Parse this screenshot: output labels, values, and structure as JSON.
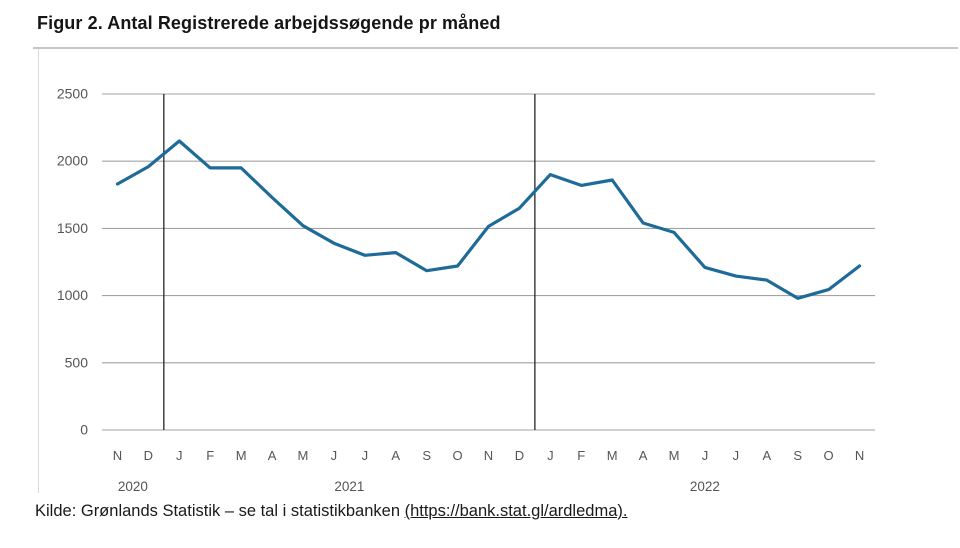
{
  "title": "Figur 2. Antal Registrerede arbejdssøgende pr måned",
  "source": {
    "prefix": "Kilde: Grønlands Statistik – se tal i statistikbanken ",
    "link": "(https://bank.stat.gl/ardledma)."
  },
  "chart_data": {
    "type": "line",
    "title": "Figur 2. Antal Registrerede arbejdssøgende pr måned",
    "xlabel": "",
    "ylabel": "",
    "x_labels": [
      "N",
      "D",
      "J",
      "F",
      "M",
      "A",
      "M",
      "J",
      "J",
      "A",
      "S",
      "O",
      "N",
      "D",
      "J",
      "F",
      "M",
      "A",
      "M",
      "J",
      "J",
      "A",
      "S",
      "O",
      "N"
    ],
    "year_groups": [
      {
        "label": "2020",
        "from": 0,
        "to": 1
      },
      {
        "label": "2021",
        "from": 2,
        "to": 13
      },
      {
        "label": "2022",
        "from": 14,
        "to": 24
      }
    ],
    "series": [
      {
        "name": "Registrerede arbejdssøgende",
        "values": [
          1830,
          1960,
          2150,
          1950,
          1950,
          1730,
          1520,
          1390,
          1300,
          1320,
          1185,
          1220,
          1515,
          1650,
          1900,
          1820,
          1860,
          1540,
          1470,
          1210,
          1145,
          1115,
          980,
          1045,
          1220
        ]
      }
    ],
    "y_ticks": [
      0,
      500,
      1000,
      1500,
      2000,
      2500
    ],
    "ylim": [
      0,
      2500
    ],
    "year_divider_after_index": [
      1,
      13
    ],
    "grid": true,
    "legend": false,
    "colors": {
      "line": "#1e6a99",
      "grid": "#a3a3a3",
      "year_divider": "#262626",
      "axis_text": "#555555"
    }
  }
}
